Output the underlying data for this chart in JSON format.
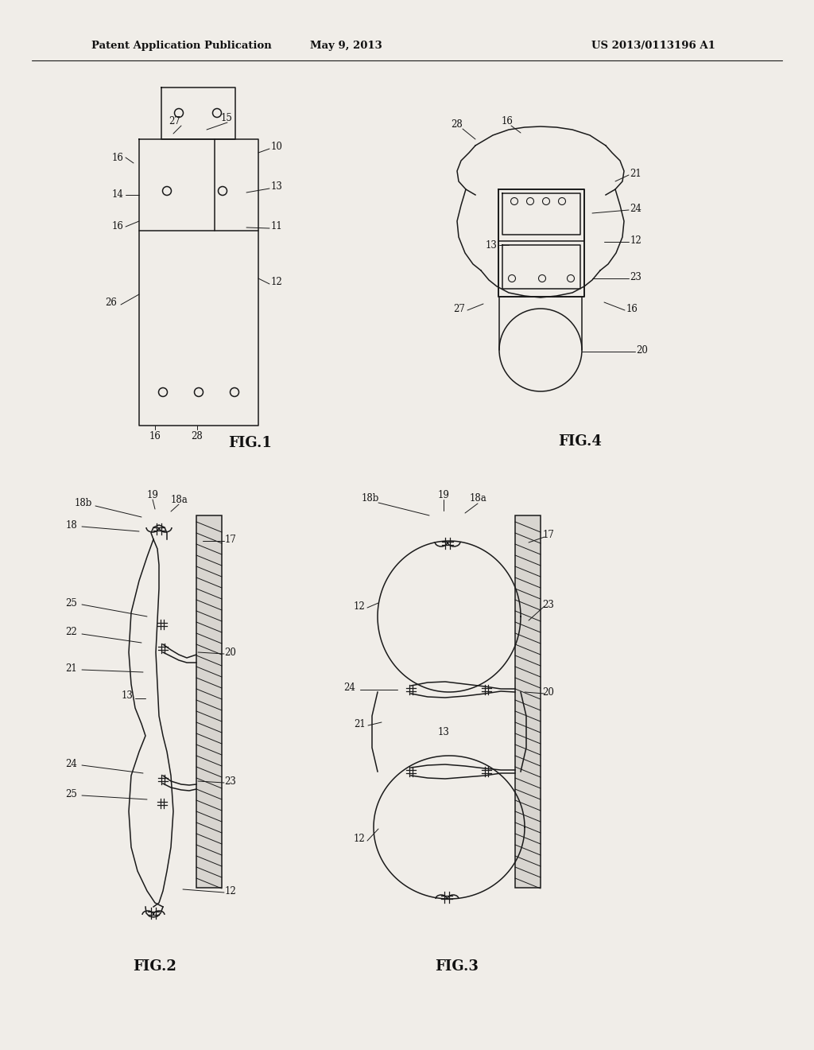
{
  "background_color": "#f0ede8",
  "header_left": "Patent Application Publication",
  "header_center": "May 9, 2013",
  "header_right": "US 2013/0113196 A1",
  "line_color": "#1a1a1a",
  "label_fontsize": 8.5,
  "figlabel_fontsize": 13,
  "fig1_label": "FIG.1",
  "fig2_label": "FIG.2",
  "fig3_label": "FIG.3",
  "fig4_label": "FIG.4"
}
